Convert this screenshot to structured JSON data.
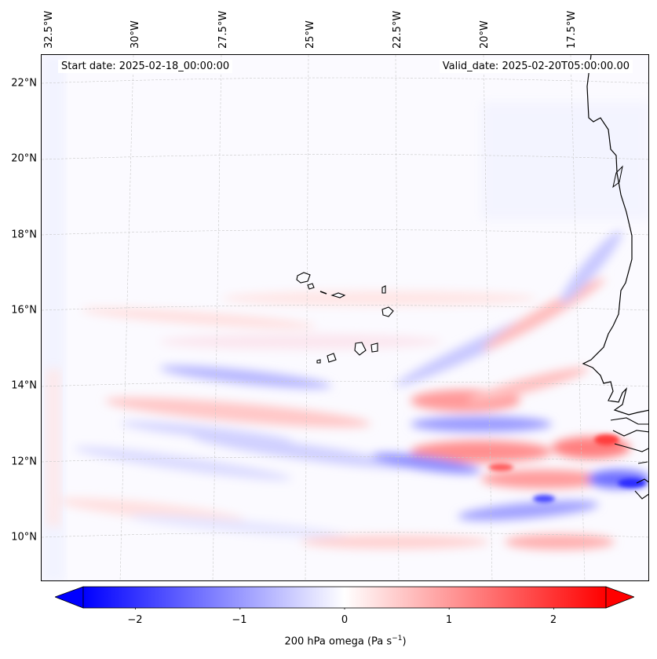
{
  "map": {
    "title_left": "Start date: 2025-02-18_00:00:00",
    "title_right": "Valid_date: 2025-02-20T05:00:00.00",
    "lon_labels": [
      "32.5°W",
      "30°W",
      "27.5°W",
      "25°W",
      "22.5°W",
      "20°W",
      "17.5°W"
    ],
    "lat_labels": [
      "22°N",
      "20°N",
      "18°N",
      "16°N",
      "14°N",
      "12°N",
      "10°N"
    ],
    "region": "Cape Verde Islands and West African coast",
    "colormap": "bwr",
    "colors": {
      "min": "#0000ff",
      "mid": "#ffffff",
      "max": "#ff0000",
      "coast": "#000000"
    }
  },
  "colorbar": {
    "ticks": [
      "−2",
      "−1",
      "0",
      "1",
      "2"
    ],
    "tick_values": [
      -2,
      -1,
      0,
      1,
      2
    ],
    "range": [
      -2.5,
      2.5
    ],
    "label_main": "200 hPa omega (Pa s",
    "label_sup": "−1",
    "label_end": ")"
  }
}
